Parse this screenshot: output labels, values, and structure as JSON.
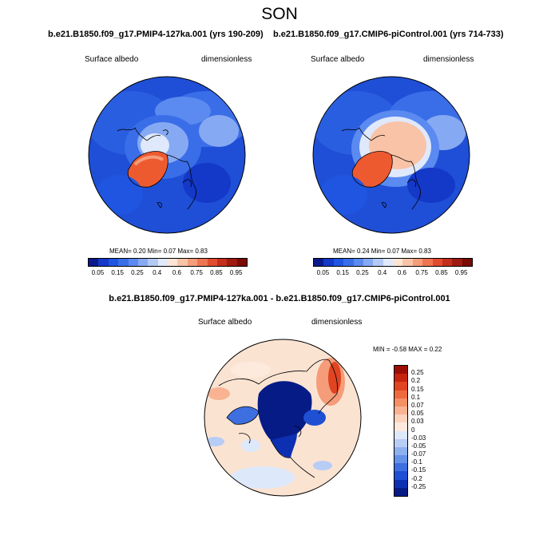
{
  "season": "SON",
  "panel_left": {
    "title": "b.e21.B1850.f09_g17.PMIP4-127ka.001 (yrs 190-209)",
    "variable": "Surface albedo",
    "units": "dimensionless",
    "stats": "MEAN=  0.20  Min=  0.07  Max=  0.83"
  },
  "panel_right": {
    "title": "b.e21.B1850.f09_g17.CMIP6-piControl.001 (yrs 714-733)",
    "variable": "Surface albedo",
    "units": "dimensionless",
    "stats": "MEAN=  0.24  Min=  0.07  Max=  0.83"
  },
  "panel_diff": {
    "title": "b.e21.B1850.f09_g17.PMIP4-127ka.001 - b.e21.B1850.f09_g17.CMIP6-piControl.001",
    "variable": "Surface albedo",
    "units": "dimensionless",
    "stats": "MIN =  -0.58 MAX =   0.22"
  },
  "colorbar_abs": {
    "labels": [
      "0.05",
      "0.15",
      "0.25",
      "0.4",
      "0.6",
      "0.75",
      "0.85",
      "0.95"
    ],
    "colors": [
      "#0a1a8c",
      "#1438c8",
      "#1f55e0",
      "#3a6ee8",
      "#5b8af0",
      "#86a9f3",
      "#b3caf7",
      "#dfe9fb",
      "#fde5d6",
      "#f9c3a8",
      "#f59c7a",
      "#ee7452",
      "#e14b30",
      "#c42e1c",
      "#9f1a10",
      "#7a0b05"
    ]
  },
  "colorbar_diff": {
    "labels": [
      "0.25",
      "0.2",
      "0.15",
      "0.1",
      "0.07",
      "0.05",
      "0.03",
      "0",
      "-0.03",
      "-0.05",
      "-0.07",
      "-0.1",
      "-0.15",
      "-0.2",
      "-0.25"
    ],
    "colors": [
      "#9c0d06",
      "#c6240f",
      "#e04420",
      "#ee6a3e",
      "#f58f66",
      "#f9b393",
      "#fcd3bd",
      "#fdeadd",
      "#dde8fb",
      "#b8cdf5",
      "#8fb0ef",
      "#6591e8",
      "#3e6fe0",
      "#1f4fd3",
      "#0d2fb2",
      "#061b86"
    ]
  },
  "colors": {
    "ocean_blue": "#1f4fd6",
    "deep_blue": "#0a1e9a",
    "greenland_red": "#ee5a30",
    "pale_peach": "#fbe3d2",
    "coast": "#000000"
  }
}
